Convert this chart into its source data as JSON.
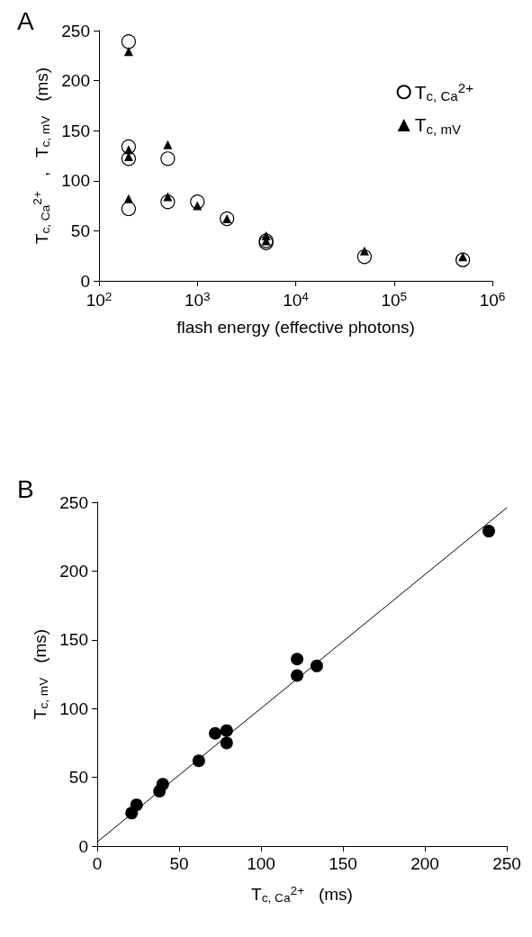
{
  "chart_data": [
    {
      "type": "scatter",
      "title": "A",
      "xlabel": "flash energy (effective photons)",
      "ylabel": "T$_{c, Ca}$$^{2+}$   ,   T$_{c, mV}$   (ms)",
      "log": "x",
      "xlim": [
        100,
        1000000
      ],
      "xticks": [
        {
          "value": 100,
          "label": "10$^{2}$"
        },
        {
          "value": 1000,
          "label": "10$^{3}$"
        },
        {
          "value": 10000,
          "label": "10$^{4}$"
        },
        {
          "value": 100000,
          "label": "10$^{5}$"
        },
        {
          "value": 1000000,
          "label": "10$^{6}$"
        }
      ],
      "ylim": [
        0,
        250
      ],
      "yticks": [
        0,
        50,
        100,
        150,
        200,
        250
      ],
      "grid": false,
      "legend": "top right",
      "series": [
        {
          "name": "T$_{c, Ca}$$^{2+}$",
          "color": "#000000",
          "marker": "circle",
          "x": [
            200,
            200,
            200,
            200,
            500,
            500,
            1000,
            2000,
            5000,
            5000,
            50000,
            500000
          ],
          "values": [
            239,
            134,
            122,
            72,
            122,
            79,
            79,
            62,
            40,
            38,
            24,
            21
          ]
        },
        {
          "name": "T$_{c, mV}$",
          "color": "#000000",
          "marker": "triangle",
          "x": [
            200,
            200,
            200,
            200,
            500,
            500,
            1000,
            2000,
            5000,
            5000,
            50000,
            500000
          ],
          "values": [
            229,
            131,
            124,
            82,
            136,
            84,
            75,
            62,
            45,
            40,
            30,
            24
          ]
        }
      ]
    },
    {
      "type": "scatter",
      "title": "B",
      "xlabel": "T$_{c, Ca}$$^{2+}$   (ms)",
      "ylabel": "T$_{c, mV}$   (ms)",
      "xlim": [
        0,
        250
      ],
      "xticks": [
        0,
        50,
        100,
        150,
        200,
        250
      ],
      "ylim": [
        0,
        250
      ],
      "yticks": [
        0,
        50,
        100,
        150,
        200,
        250
      ],
      "grid": false,
      "series": [
        {
          "color": "#000000",
          "marker": "circle",
          "x": [
            239,
            134,
            122,
            72,
            122,
            79,
            79,
            62,
            40,
            38,
            24,
            21
          ],
          "values": [
            229,
            131,
            124,
            82,
            136,
            84,
            75,
            62,
            45,
            40,
            30,
            24
          ]
        },
        {
          "type": "line",
          "color": "#000000",
          "marker": "none",
          "x": [
            0,
            250
          ],
          "values": [
            3,
            246
          ]
        }
      ]
    }
  ]
}
